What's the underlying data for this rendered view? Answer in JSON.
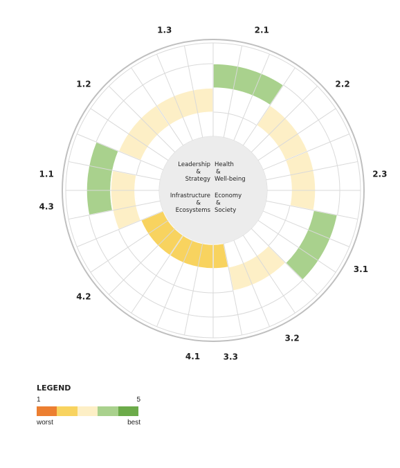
{
  "chart_data": {
    "type": "radial-segment",
    "segments": [
      {
        "label": "1.1",
        "score": 4,
        "start_deg": 258.75
      },
      {
        "label": "1.2",
        "score": 3,
        "start_deg": 292.5
      },
      {
        "label": "1.3",
        "score": 3,
        "start_deg": 326.25
      },
      {
        "label": "2.1",
        "score": 4,
        "start_deg": 0
      },
      {
        "label": "2.2",
        "score": 3,
        "start_deg": 33.75
      },
      {
        "label": "2.3",
        "score": 3,
        "start_deg": 67.5
      },
      {
        "label": "3.1",
        "score": 4,
        "start_deg": 101.25
      },
      {
        "label": "3.2",
        "score": 3,
        "start_deg": 135
      },
      {
        "label": "3.3",
        "score": 2,
        "start_deg": 168.75
      },
      {
        "label": "4.1",
        "score": 2,
        "start_deg": 180
      },
      {
        "label": "4.2",
        "score": 2,
        "start_deg": 213.75
      },
      {
        "label": "4.3",
        "score": 3,
        "start_deg": 247.5
      }
    ],
    "center_labels": [
      {
        "id": "leadership",
        "lines": [
          "Leadership",
          "&",
          "Strategy"
        ]
      },
      {
        "id": "health",
        "lines": [
          "Health",
          "&",
          "Well-being"
        ]
      },
      {
        "id": "infrastructure",
        "lines": [
          "Infrastructure",
          "&",
          "Ecosystems"
        ]
      },
      {
        "id": "economy",
        "lines": [
          "Economy",
          "&",
          "Society"
        ]
      }
    ],
    "score_scale": [
      1,
      2,
      3,
      4,
      5
    ],
    "colors": {
      "1": "#ec7f31",
      "2": "#f8d35f",
      "3": "#fdefc6",
      "4": "#a9d18d",
      "5": "#6cab4a",
      "grid": "#d9d9d9",
      "outer_ring": "#bfbfbf",
      "center_fill": "#ececec"
    }
  },
  "legend": {
    "title": "LEGEND",
    "min_label": "1",
    "max_label": "5",
    "worst_label": "worst",
    "best_label": "best",
    "swatches": [
      "#ec7f31",
      "#f8d35f",
      "#fdefc6",
      "#a9d18d",
      "#6cab4a"
    ]
  }
}
